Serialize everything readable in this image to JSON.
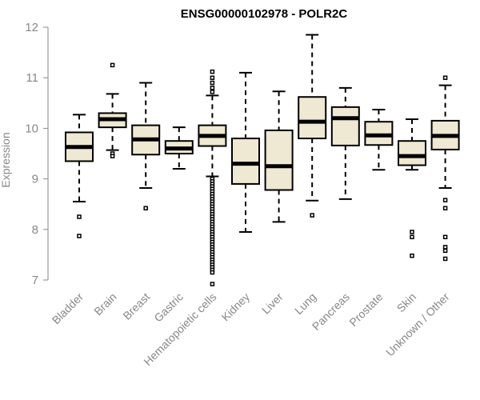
{
  "chart_data": {
    "type": "boxplot",
    "title": "ENSG00000102978 - POLR2C",
    "xlabel": "",
    "ylabel": "Expression",
    "ylim": [
      6.85,
      12.0
    ],
    "yticks": [
      7,
      8,
      9,
      10,
      11,
      12
    ],
    "categories": [
      "Bladder",
      "Brain",
      "Breast",
      "Gastric",
      "Hematopoietic cells",
      "Kidney",
      "Liver",
      "Lung",
      "Pancreas",
      "Prostate",
      "Skin",
      "Unknown / Other"
    ],
    "boxes": [
      {
        "name": "Bladder",
        "whislo": 8.55,
        "q1": 9.35,
        "med": 9.63,
        "q3": 9.92,
        "whishi": 10.27,
        "fliers": [
          8.25,
          7.87
        ]
      },
      {
        "name": "Brain",
        "whislo": 9.57,
        "q1": 10.02,
        "med": 10.18,
        "q3": 10.3,
        "whishi": 10.68,
        "fliers": [
          11.25,
          9.5,
          9.45
        ]
      },
      {
        "name": "Breast",
        "whislo": 8.82,
        "q1": 9.48,
        "med": 9.78,
        "q3": 10.06,
        "whishi": 10.9,
        "fliers": [
          8.42
        ]
      },
      {
        "name": "Gastric",
        "whislo": 9.2,
        "q1": 9.5,
        "med": 9.6,
        "q3": 9.75,
        "whishi": 10.02,
        "fliers": []
      },
      {
        "name": "Hematopoietic cells",
        "whislo": 9.05,
        "q1": 9.65,
        "med": 9.85,
        "q3": 10.06,
        "whishi": 10.65,
        "fliers": [
          11.12,
          11.0,
          10.9,
          10.8,
          10.72,
          9.0,
          8.95,
          8.9,
          8.85,
          8.8,
          8.75,
          8.7,
          8.65,
          8.6,
          8.55,
          8.5,
          8.45,
          8.4,
          8.35,
          8.3,
          8.25,
          8.2,
          8.15,
          8.1,
          8.05,
          8.0,
          7.95,
          7.9,
          7.85,
          7.8,
          7.75,
          7.7,
          7.65,
          7.6,
          7.55,
          7.5,
          7.45,
          7.4,
          7.35,
          7.3,
          7.25,
          7.2,
          7.15,
          6.92
        ]
      },
      {
        "name": "Kidney",
        "whislo": 7.95,
        "q1": 8.9,
        "med": 9.3,
        "q3": 9.8,
        "whishi": 11.1,
        "fliers": []
      },
      {
        "name": "Liver",
        "whislo": 8.15,
        "q1": 8.78,
        "med": 9.25,
        "q3": 9.96,
        "whishi": 10.73,
        "fliers": []
      },
      {
        "name": "Lung",
        "whislo": 8.57,
        "q1": 9.8,
        "med": 10.13,
        "q3": 10.62,
        "whishi": 11.85,
        "fliers": [
          8.28
        ]
      },
      {
        "name": "Pancreas",
        "whislo": 8.6,
        "q1": 9.66,
        "med": 10.2,
        "q3": 10.42,
        "whishi": 10.8,
        "fliers": []
      },
      {
        "name": "Prostate",
        "whislo": 9.18,
        "q1": 9.67,
        "med": 9.86,
        "q3": 10.13,
        "whishi": 10.37,
        "fliers": []
      },
      {
        "name": "Skin",
        "whislo": 9.18,
        "q1": 9.27,
        "med": 9.45,
        "q3": 9.75,
        "whishi": 10.18,
        "fliers": [
          7.95,
          7.85,
          7.48
        ]
      },
      {
        "name": "Unknown / Other",
        "whislo": 8.82,
        "q1": 9.58,
        "med": 9.85,
        "q3": 10.15,
        "whishi": 10.85,
        "fliers": [
          11.0,
          8.58,
          8.42,
          7.85,
          7.65,
          7.58,
          7.42
        ]
      }
    ],
    "colors": {
      "box_fill": "#efe8d2",
      "box_stroke": "#000000",
      "axis": "#888888"
    }
  }
}
